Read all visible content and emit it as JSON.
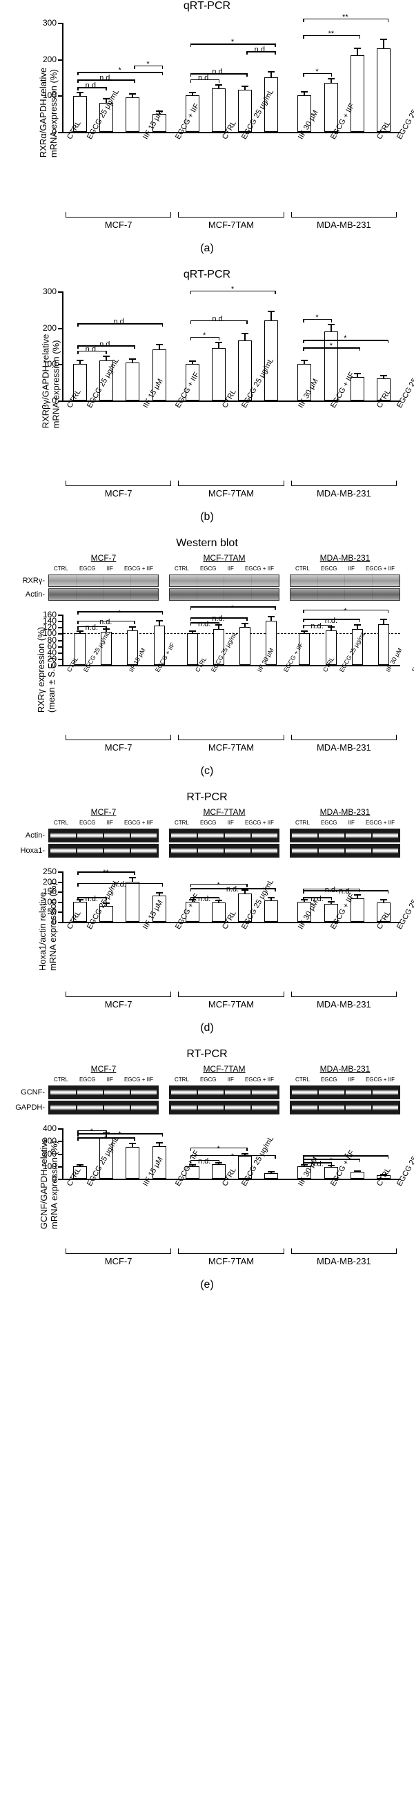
{
  "panels": {
    "a": {
      "title": "qRT-PCR",
      "y_label": "RXRα/GAPDH relative\nmRNA expression (%)",
      "ylim": [
        0,
        300
      ],
      "ytick_step": 100,
      "categories": [
        "CTRL",
        "EGCG 25 μg/mL",
        "IIF 15 μM",
        "EGCG + IIF"
      ],
      "categories_30": [
        "CTRL",
        "EGCG 25 μg/mL",
        "IIF 30 μM",
        "EGCG + IIF"
      ],
      "cell_lines": [
        "MCF-7",
        "MCF-7TAM",
        "MDA-MB-231"
      ],
      "groups": [
        {
          "values": [
            98,
            80,
            95,
            50
          ],
          "errors": [
            10,
            12,
            10,
            8
          ],
          "sig": [
            [
              "n.d.",
              0,
              1
            ],
            [
              "n.d.",
              0,
              2
            ],
            [
              "*",
              0,
              3
            ],
            [
              "*",
              2,
              3
            ]
          ]
        },
        {
          "values": [
            100,
            120,
            115,
            150
          ],
          "errors": [
            8,
            10,
            10,
            15
          ],
          "sig": [
            [
              "n.d.",
              0,
              1
            ],
            [
              "n.d.",
              0,
              2
            ],
            [
              "n.d.",
              2,
              3
            ],
            [
              "*",
              0,
              3
            ]
          ]
        },
        {
          "values": [
            100,
            135,
            210,
            230
          ],
          "errors": [
            10,
            12,
            20,
            25
          ],
          "sig": [
            [
              "*",
              0,
              1
            ],
            [
              "**",
              0,
              2
            ],
            [
              "**",
              0,
              3
            ]
          ]
        }
      ],
      "label": "(a)"
    },
    "b": {
      "title": "qRT-PCR",
      "y_label": "RXRβγ/GAPDH relative\nmRNA expression (%)",
      "ylim": [
        0,
        300
      ],
      "ytick_step": 100,
      "groups": [
        {
          "values": [
            100,
            110,
            105,
            140
          ],
          "errors": [
            10,
            12,
            10,
            15
          ],
          "sig": [
            [
              "n.d.",
              0,
              1
            ],
            [
              "n.d.",
              0,
              2
            ],
            [
              "n.d.",
              0,
              3
            ]
          ]
        },
        {
          "values": [
            100,
            145,
            165,
            220
          ],
          "errors": [
            8,
            15,
            20,
            25
          ],
          "sig": [
            [
              "*",
              0,
              1
            ],
            [
              "n.d.",
              0,
              2
            ],
            [
              "*",
              0,
              3
            ]
          ]
        },
        {
          "values": [
            100,
            190,
            65,
            60
          ],
          "errors": [
            10,
            20,
            10,
            8
          ],
          "sig": [
            [
              "*",
              0,
              1
            ],
            [
              "*",
              0,
              2
            ],
            [
              "*",
              0,
              3
            ]
          ]
        }
      ],
      "label": "(b)"
    },
    "c": {
      "title": "Western blot",
      "proteins": [
        "RXRγ-",
        "Actin-"
      ],
      "y_label": "RXRγ expression (%)\n(mean ± S.E.)",
      "ylim": [
        0,
        160
      ],
      "ytick_step": 20,
      "groups": [
        {
          "values": [
            100,
            105,
            110,
            125
          ],
          "errors": [
            8,
            10,
            12,
            15
          ],
          "sig": [
            [
              "n.d.",
              0,
              1
            ],
            [
              "n.d.",
              0,
              2
            ],
            [
              "*",
              0,
              3
            ]
          ]
        },
        {
          "values": [
            100,
            115,
            120,
            140
          ],
          "errors": [
            8,
            12,
            12,
            15
          ],
          "sig": [
            [
              "n.d.",
              0,
              1
            ],
            [
              "n.d.",
              0,
              2
            ],
            [
              "*",
              0,
              3
            ]
          ]
        },
        {
          "values": [
            100,
            110,
            115,
            130
          ],
          "errors": [
            8,
            10,
            12,
            15
          ],
          "sig": [
            [
              "n.d.",
              0,
              1
            ],
            [
              "n.d.",
              0,
              2
            ],
            [
              "*",
              0,
              3
            ]
          ]
        }
      ],
      "dashed_at": 100,
      "label": "(c)"
    },
    "d": {
      "title": "RT-PCR",
      "proteins": [
        "Actin-",
        "Hoxa1-"
      ],
      "y_label": "Hoxa1/actin relative\nmRNA expression (%)",
      "ylim": [
        0,
        250
      ],
      "ytick_step": 50,
      "groups": [
        {
          "values": [
            100,
            80,
            200,
            130
          ],
          "errors": [
            10,
            12,
            20,
            15
          ],
          "sig": [
            [
              "n.d.",
              0,
              1
            ],
            [
              "**",
              0,
              2
            ],
            [
              "n.d.",
              0,
              3
            ]
          ]
        },
        {
          "values": [
            100,
            95,
            140,
            105
          ],
          "errors": [
            10,
            12,
            20,
            15
          ],
          "sig": [
            [
              "n.d.",
              0,
              1
            ],
            [
              "*",
              0,
              2
            ],
            [
              "n.d.",
              0,
              3
            ]
          ]
        },
        {
          "values": [
            100,
            90,
            115,
            95
          ],
          "errors": [
            10,
            12,
            20,
            15
          ],
          "sig": [
            [
              "n.d.",
              0,
              1
            ],
            [
              "n.d.",
              0,
              2
            ],
            [
              "n.d.",
              0,
              3
            ]
          ]
        }
      ],
      "label": "(d)"
    },
    "e": {
      "title": "RT-PCR",
      "proteins": [
        "GCNF-",
        "GAPDH-"
      ],
      "y_label": "GCNF/GAPDH relative\nmRNA expression (%)",
      "ylim": [
        0,
        400
      ],
      "ytick_step": 100,
      "groups": [
        {
          "values": [
            100,
            330,
            250,
            260
          ],
          "errors": [
            12,
            35,
            30,
            25
          ],
          "sig": [
            [
              "*",
              0,
              1
            ],
            [
              "*",
              0,
              2
            ],
            [
              "*",
              0,
              3
            ]
          ]
        },
        {
          "values": [
            100,
            115,
            180,
            45
          ],
          "errors": [
            12,
            15,
            20,
            10
          ],
          "sig": [
            [
              "n.d.",
              0,
              1
            ],
            [
              "*",
              0,
              2
            ],
            [
              "*",
              0,
              3
            ]
          ]
        },
        {
          "values": [
            100,
            95,
            55,
            30
          ],
          "errors": [
            10,
            12,
            10,
            8
          ],
          "sig": [
            [
              "n.d.",
              0,
              1
            ],
            [
              "*",
              0,
              2
            ],
            [
              "*",
              0,
              3
            ]
          ]
        }
      ],
      "label": "(e)"
    }
  },
  "blot_headers": [
    "CTRL",
    "EGCG",
    "IIF",
    "EGCG + IIF"
  ],
  "colors": {
    "bar_fill": "#ffffff",
    "bar_border": "#000000",
    "axis": "#000000",
    "background": "#ffffff"
  }
}
